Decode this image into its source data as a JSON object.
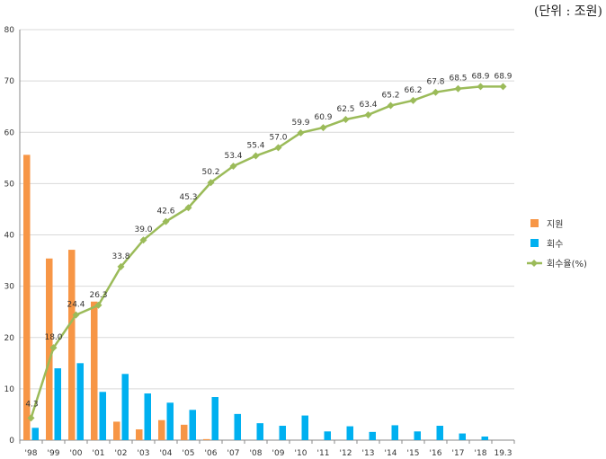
{
  "unit_label": "(단위 : 조원)",
  "chart_data": {
    "type": "bar+line",
    "categories": [
      "'98",
      "'99",
      "'00",
      "'01",
      "'02",
      "'03",
      "'04",
      "'05",
      "'06",
      "'07",
      "'08",
      "'09",
      "'10",
      "'11",
      "'12",
      "'13",
      "'14",
      "'15",
      "'16",
      "'17",
      "'18",
      "19.3"
    ],
    "ylim": [
      0,
      80
    ],
    "yticks": [
      0,
      10,
      20,
      30,
      40,
      50,
      60,
      70,
      80
    ],
    "grid": true,
    "legend_position": "right",
    "series": [
      {
        "name": "지원",
        "kind": "bar",
        "color": "#f79646",
        "values": [
          55.6,
          35.4,
          37.1,
          27.0,
          3.6,
          2.1,
          3.9,
          3.0,
          0.2,
          0,
          0,
          0,
          0,
          0,
          0,
          0,
          0,
          0,
          0,
          0,
          0,
          0
        ]
      },
      {
        "name": "회수",
        "kind": "bar",
        "color": "#00b0f0",
        "values": [
          2.4,
          14.0,
          15.0,
          9.4,
          12.9,
          9.1,
          7.3,
          5.9,
          8.4,
          5.1,
          3.3,
          2.8,
          4.8,
          1.7,
          2.7,
          1.6,
          2.9,
          1.7,
          2.8,
          1.3,
          0.7,
          0
        ]
      },
      {
        "name": "회수율(%)",
        "kind": "line",
        "color": "#9bbb59",
        "values": [
          4.3,
          18.0,
          24.4,
          26.3,
          33.8,
          39.0,
          42.6,
          45.3,
          50.2,
          53.4,
          55.4,
          57.0,
          59.9,
          60.9,
          62.5,
          63.4,
          65.2,
          66.2,
          67.8,
          68.5,
          68.9,
          68.9
        ],
        "labels": [
          "4.3",
          "18.0",
          "24.4",
          "26.3",
          "33.8",
          "39.0",
          "42.6",
          "45.3",
          "50.2",
          "53.4",
          "55.4",
          "57.0",
          "59.9",
          "60.9",
          "62.5",
          "63.4",
          "65.2",
          "66.2",
          "67.8",
          "68.5",
          "68.9",
          "68.9"
        ]
      }
    ]
  }
}
